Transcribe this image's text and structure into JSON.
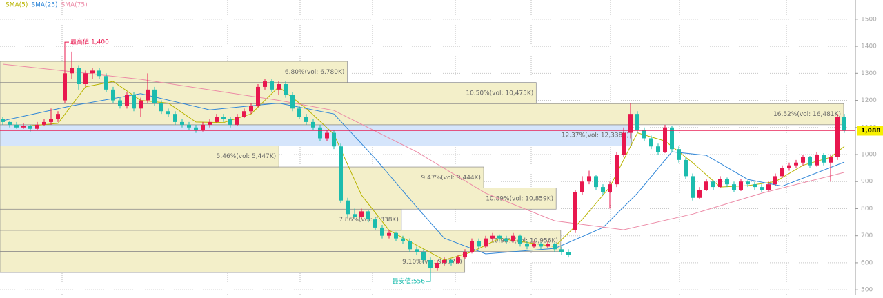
{
  "chart_data": {
    "type": "candlestick",
    "legend": [
      {
        "name": "SMA(5)",
        "color": "#b8b400"
      },
      {
        "name": "SMA(25)",
        "color": "#2f86d8"
      },
      {
        "name": "SMA(75)",
        "color": "#ec8aa6"
      }
    ],
    "up_color": "#e8174e",
    "down_color": "#1cbcae",
    "ylim": [
      480,
      1571
    ],
    "yticks": [
      500,
      600,
      700,
      800,
      900,
      1000,
      1100,
      1200,
      1300,
      1400,
      1500
    ],
    "grid": true,
    "candles": [
      [
        1130,
        1140,
        1110,
        1120
      ],
      [
        1120,
        1125,
        1100,
        1110
      ],
      [
        1110,
        1120,
        1095,
        1100
      ],
      [
        1100,
        1115,
        1095,
        1105
      ],
      [
        1105,
        1110,
        1085,
        1095
      ],
      [
        1095,
        1120,
        1090,
        1110
      ],
      [
        1110,
        1130,
        1105,
        1120
      ],
      [
        1120,
        1170,
        1110,
        1130
      ],
      [
        1130,
        1160,
        1120,
        1150
      ],
      [
        1200,
        1400,
        1190,
        1300
      ],
      [
        1300,
        1380,
        1280,
        1320
      ],
      [
        1320,
        1330,
        1240,
        1260
      ],
      [
        1260,
        1310,
        1250,
        1300
      ],
      [
        1300,
        1320,
        1280,
        1310
      ],
      [
        1310,
        1320,
        1280,
        1290
      ],
      [
        1290,
        1300,
        1230,
        1240
      ],
      [
        1240,
        1250,
        1190,
        1200
      ],
      [
        1200,
        1210,
        1170,
        1180
      ],
      [
        1180,
        1230,
        1170,
        1220
      ],
      [
        1220,
        1230,
        1160,
        1170
      ],
      [
        1170,
        1210,
        1140,
        1200
      ],
      [
        1200,
        1300,
        1190,
        1240
      ],
      [
        1240,
        1250,
        1180,
        1190
      ],
      [
        1190,
        1200,
        1150,
        1160
      ],
      [
        1160,
        1170,
        1140,
        1150
      ],
      [
        1150,
        1160,
        1110,
        1120
      ],
      [
        1120,
        1130,
        1100,
        1110
      ],
      [
        1110,
        1120,
        1090,
        1100
      ],
      [
        1100,
        1110,
        1080,
        1090
      ],
      [
        1090,
        1120,
        1085,
        1110
      ],
      [
        1110,
        1130,
        1100,
        1120
      ],
      [
        1120,
        1150,
        1115,
        1140
      ],
      [
        1140,
        1150,
        1120,
        1130
      ],
      [
        1130,
        1140,
        1100,
        1110
      ],
      [
        1110,
        1150,
        1105,
        1140
      ],
      [
        1140,
        1170,
        1135,
        1160
      ],
      [
        1160,
        1190,
        1150,
        1180
      ],
      [
        1180,
        1260,
        1175,
        1250
      ],
      [
        1250,
        1280,
        1240,
        1270
      ],
      [
        1270,
        1280,
        1230,
        1240
      ],
      [
        1240,
        1270,
        1220,
        1260
      ],
      [
        1260,
        1270,
        1210,
        1220
      ],
      [
        1220,
        1230,
        1160,
        1170
      ],
      [
        1170,
        1180,
        1130,
        1140
      ],
      [
        1140,
        1150,
        1110,
        1120
      ],
      [
        1120,
        1130,
        1090,
        1100
      ],
      [
        1100,
        1110,
        1050,
        1060
      ],
      [
        1060,
        1090,
        1050,
        1080
      ],
      [
        1080,
        1090,
        1020,
        1030
      ],
      [
        1030,
        1040,
        820,
        830
      ],
      [
        830,
        840,
        770,
        780
      ],
      [
        780,
        800,
        760,
        770
      ],
      [
        770,
        800,
        760,
        790
      ],
      [
        790,
        795,
        750,
        760
      ],
      [
        760,
        770,
        720,
        730
      ],
      [
        730,
        740,
        690,
        700
      ],
      [
        700,
        720,
        690,
        710
      ],
      [
        710,
        715,
        680,
        690
      ],
      [
        690,
        700,
        670,
        680
      ],
      [
        680,
        690,
        640,
        650
      ],
      [
        650,
        660,
        630,
        640
      ],
      [
        640,
        650,
        600,
        610
      ],
      [
        610,
        620,
        556,
        580
      ],
      [
        580,
        610,
        570,
        600
      ],
      [
        600,
        620,
        590,
        610
      ],
      [
        610,
        615,
        590,
        600
      ],
      [
        600,
        630,
        595,
        620
      ],
      [
        620,
        650,
        615,
        640
      ],
      [
        640,
        690,
        635,
        680
      ],
      [
        680,
        690,
        650,
        660
      ],
      [
        660,
        700,
        655,
        690
      ],
      [
        690,
        710,
        680,
        700
      ],
      [
        700,
        705,
        680,
        690
      ],
      [
        690,
        700,
        670,
        680
      ],
      [
        680,
        710,
        675,
        700
      ],
      [
        700,
        705,
        660,
        670
      ],
      [
        670,
        680,
        650,
        660
      ],
      [
        660,
        680,
        655,
        670
      ],
      [
        670,
        675,
        650,
        660
      ],
      [
        660,
        680,
        655,
        670
      ],
      [
        670,
        675,
        640,
        650
      ],
      [
        650,
        660,
        630,
        640
      ],
      [
        640,
        650,
        620,
        630
      ],
      [
        720,
        870,
        710,
        860
      ],
      [
        860,
        920,
        850,
        900
      ],
      [
        900,
        940,
        890,
        920
      ],
      [
        920,
        925,
        870,
        880
      ],
      [
        880,
        890,
        850,
        860
      ],
      [
        860,
        900,
        800,
        890
      ],
      [
        890,
        1010,
        880,
        1000
      ],
      [
        1000,
        1100,
        990,
        1080
      ],
      [
        1080,
        1190,
        1060,
        1150
      ],
      [
        1150,
        1160,
        1080,
        1090
      ],
      [
        1090,
        1100,
        1050,
        1060
      ],
      [
        1060,
        1070,
        1020,
        1030
      ],
      [
        1030,
        1040,
        1000,
        1010
      ],
      [
        1010,
        1110,
        1005,
        1100
      ],
      [
        1100,
        1105,
        1010,
        1020
      ],
      [
        1020,
        1030,
        970,
        980
      ],
      [
        980,
        990,
        910,
        920
      ],
      [
        920,
        930,
        830,
        840
      ],
      [
        840,
        880,
        835,
        870
      ],
      [
        870,
        910,
        865,
        900
      ],
      [
        900,
        905,
        870,
        880
      ],
      [
        880,
        920,
        875,
        910
      ],
      [
        910,
        915,
        880,
        890
      ],
      [
        890,
        900,
        860,
        870
      ],
      [
        870,
        910,
        865,
        900
      ],
      [
        900,
        905,
        880,
        890
      ],
      [
        890,
        900,
        870,
        880
      ],
      [
        880,
        890,
        860,
        870
      ],
      [
        870,
        900,
        865,
        890
      ],
      [
        890,
        930,
        885,
        920
      ],
      [
        920,
        960,
        915,
        950
      ],
      [
        950,
        970,
        940,
        960
      ],
      [
        960,
        980,
        950,
        970
      ],
      [
        970,
        1000,
        960,
        990
      ],
      [
        990,
        995,
        950,
        960
      ],
      [
        960,
        1010,
        955,
        1000
      ],
      [
        1000,
        1005,
        960,
        970
      ],
      [
        970,
        1000,
        900,
        990
      ],
      [
        990,
        1150,
        980,
        1140
      ],
      [
        1140,
        1150,
        1080,
        1088
      ]
    ],
    "series": [
      {
        "color": "#b8b400",
        "x": [
          4,
          8,
          12,
          16,
          20,
          24,
          28,
          32,
          36,
          40,
          44,
          48,
          52,
          56,
          60,
          64,
          68,
          72,
          76,
          80,
          84,
          88,
          92,
          96,
          100,
          104,
          108,
          112,
          116,
          120,
          122
        ],
        "values": [
          1106,
          1115,
          1250,
          1270,
          1200,
          1190,
          1120,
          1118,
          1150,
          1250,
          1170,
          1075,
          850,
          720,
          665,
          610,
          640,
          690,
          675,
          660,
          760,
          880,
          1080,
          1050,
          970,
          880,
          885,
          900,
          960,
          990,
          1030
        ]
      },
      {
        "color": "#2f86d8",
        "x": [
          0,
          10,
          20,
          30,
          40,
          48,
          54,
          60,
          64,
          70,
          80,
          87,
          92,
          97,
          102,
          108,
          113,
          122
        ],
        "values": [
          1125,
          1180,
          1225,
          1165,
          1190,
          1150,
          985,
          806,
          691,
          633,
          653,
          730,
          857,
          1010,
          997,
          908,
          883,
          972
        ]
      },
      {
        "color": "#ec8aa6",
        "x": [
          0,
          20,
          40,
          48,
          60,
          70,
          80,
          90,
          100,
          110,
          122
        ],
        "values": [
          1334,
          1278,
          1200,
          1163,
          1010,
          857,
          755,
          722,
          780,
          857,
          934
        ]
      }
    ],
    "profile": {
      "edges": [
        564,
        642,
        720,
        798,
        876,
        954,
        1032,
        1110,
        1188,
        1266,
        1344
      ],
      "values": [
        9.1,
        10.98,
        7.86,
        10.89,
        9.47,
        5.46,
        12.37,
        16.52,
        10.5,
        6.8
      ],
      "value_labels": [
        "9.10%(vol: 9,077K)",
        "10.98%(vol: 10,956K)",
        "7.86%(vol: 7,838K)",
        "10.89%(vol: 10,859K)",
        "9.47%(vol: 9,444K)",
        "5.46%(vol: 5,447K)",
        "12.37%(vol: 12,338K)",
        "16.52%(vol: 16,481K)",
        "10.50%(vol: 10,475K)",
        "6.80%(vol: 6,780K)"
      ],
      "xlim": [
        0,
        16.75
      ],
      "color": "#f3efc9",
      "highlight_color": "#d5e5fb"
    },
    "last_price": {
      "value": 1088,
      "label": "1,088"
    },
    "annotations": [
      {
        "label": "最高値:1,400",
        "value": 1400,
        "color": "#e8174e"
      },
      {
        "label": "最安値:556",
        "value": 556,
        "color": "#1cbcae"
      }
    ]
  }
}
